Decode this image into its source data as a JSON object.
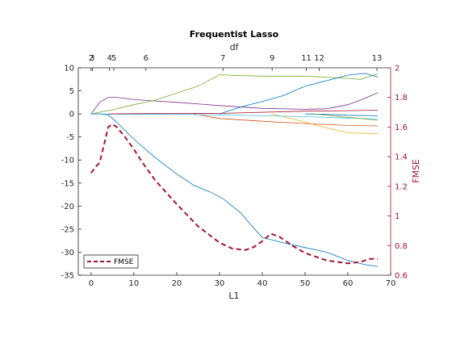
{
  "chart_data": {
    "type": "line",
    "title": "Frequentist Lasso",
    "xlabel": "L1",
    "ylabel": "",
    "top_xlabel": "df",
    "right_ylabel": "FMSE",
    "xlim": [
      -3,
      70
    ],
    "ylim": [
      -35,
      10
    ],
    "right_ylim": [
      0.6,
      2
    ],
    "x_ticks": [
      0,
      10,
      20,
      30,
      40,
      50,
      60,
      70
    ],
    "y_ticks": [
      10,
      5,
      0,
      -5,
      -10,
      -15,
      -20,
      -25,
      -30,
      -35
    ],
    "right_ticks": [
      2,
      1.8,
      1.6,
      1.4,
      1.2,
      1,
      0.8,
      0.6
    ],
    "top_ticks": [
      {
        "x": 0,
        "label": "2"
      },
      {
        "x": 0.3,
        "label": "3"
      },
      {
        "x": 4.3,
        "label": "4"
      },
      {
        "x": 5.3,
        "label": "5"
      },
      {
        "x": 12.8,
        "label": "6"
      },
      {
        "x": 30.8,
        "label": "7"
      },
      {
        "x": 42.3,
        "label": "9"
      },
      {
        "x": 50.3,
        "label": "11"
      },
      {
        "x": 53.3,
        "label": "12"
      },
      {
        "x": 66.8,
        "label": "13"
      }
    ],
    "series": [
      {
        "color": "#7E2F8E",
        "x": [
          0,
          2,
          4,
          6,
          10,
          20,
          30,
          40,
          50,
          55,
          60,
          63,
          67
        ],
        "y": [
          0,
          2.5,
          3.6,
          3.6,
          3.1,
          2.5,
          1.8,
          1.2,
          1.0,
          1.1,
          2.0,
          3.0,
          4.6
        ]
      },
      {
        "color": "#77AC30",
        "x": [
          0,
          5,
          10,
          15,
          20,
          25,
          30,
          35,
          40,
          50,
          60,
          63,
          67
        ],
        "y": [
          0,
          0.9,
          2.0,
          3.0,
          4.5,
          6.0,
          8.5,
          8.3,
          8.2,
          8.2,
          7.7,
          7.5,
          8.7
        ]
      },
      {
        "color": "#0072BD",
        "x": [
          30,
          35,
          40,
          45,
          50,
          55,
          60,
          64,
          67
        ],
        "y": [
          0,
          1.5,
          2.7,
          4.0,
          6.0,
          7.2,
          8.4,
          8.8,
          8.0
        ]
      },
      {
        "color": "#D95319",
        "x": [
          24,
          30,
          40,
          50,
          60,
          67
        ],
        "y": [
          0,
          -1.0,
          -1.6,
          -2.1,
          -2.5,
          -2.6
        ]
      },
      {
        "color": "#EDB120",
        "x": [
          42,
          45,
          50,
          55,
          60,
          67
        ],
        "y": [
          0,
          -0.6,
          -1.8,
          -3.0,
          -4.1,
          -4.3
        ]
      },
      {
        "color": "#4DBEEE",
        "x": [
          0,
          10,
          20,
          30,
          40,
          50,
          60,
          67
        ],
        "y": [
          0,
          -0.1,
          -0.1,
          -0.2,
          -0.4,
          -0.6,
          -0.9,
          -1.1
        ]
      },
      {
        "color": "#A2142F",
        "x": [
          4,
          10,
          30,
          50,
          60,
          67
        ],
        "y": [
          0,
          0.05,
          0.1,
          0.6,
          0.7,
          0.8
        ]
      },
      {
        "color": "#0072BD",
        "x": [
          50,
          55,
          60,
          67
        ],
        "y": [
          0,
          -0.1,
          -0.3,
          -0.4
        ]
      },
      {
        "color": "#77AC30",
        "x": [
          52,
          58,
          63,
          67
        ],
        "y": [
          0,
          -0.6,
          -1.0,
          -1.4
        ]
      },
      {
        "color": "#0072BD",
        "x": [
          0,
          2,
          4,
          6,
          10,
          15,
          20,
          24,
          28,
          31,
          35,
          38,
          40,
          45,
          50,
          55,
          60,
          64,
          67
        ],
        "y": [
          0,
          0,
          -0.2,
          -1.8,
          -5.5,
          -9.5,
          -13.0,
          -15.5,
          -17.0,
          -18.5,
          -21.5,
          -24.8,
          -26.8,
          -28.0,
          -29.0,
          -30.0,
          -31.8,
          -32.7,
          -33.1
        ]
      }
    ],
    "fmse": {
      "name": "FMSE",
      "color": "#A2142F",
      "axis": "right",
      "x": [
        0,
        1,
        2,
        3,
        4,
        5,
        6,
        8,
        10,
        12,
        15,
        20,
        25,
        30,
        33,
        36,
        38,
        40,
        42,
        44,
        47,
        50,
        55,
        60,
        63,
        65,
        67
      ],
      "y": [
        1.29,
        1.33,
        1.36,
        1.48,
        1.6,
        1.62,
        1.6,
        1.53,
        1.45,
        1.36,
        1.24,
        1.08,
        0.93,
        0.82,
        0.78,
        0.77,
        0.79,
        0.83,
        0.88,
        0.86,
        0.8,
        0.75,
        0.7,
        0.68,
        0.69,
        0.71,
        0.71
      ]
    },
    "legend": {
      "position": "bottom-left",
      "entries": [
        "FMSE"
      ]
    },
    "grid": false
  }
}
